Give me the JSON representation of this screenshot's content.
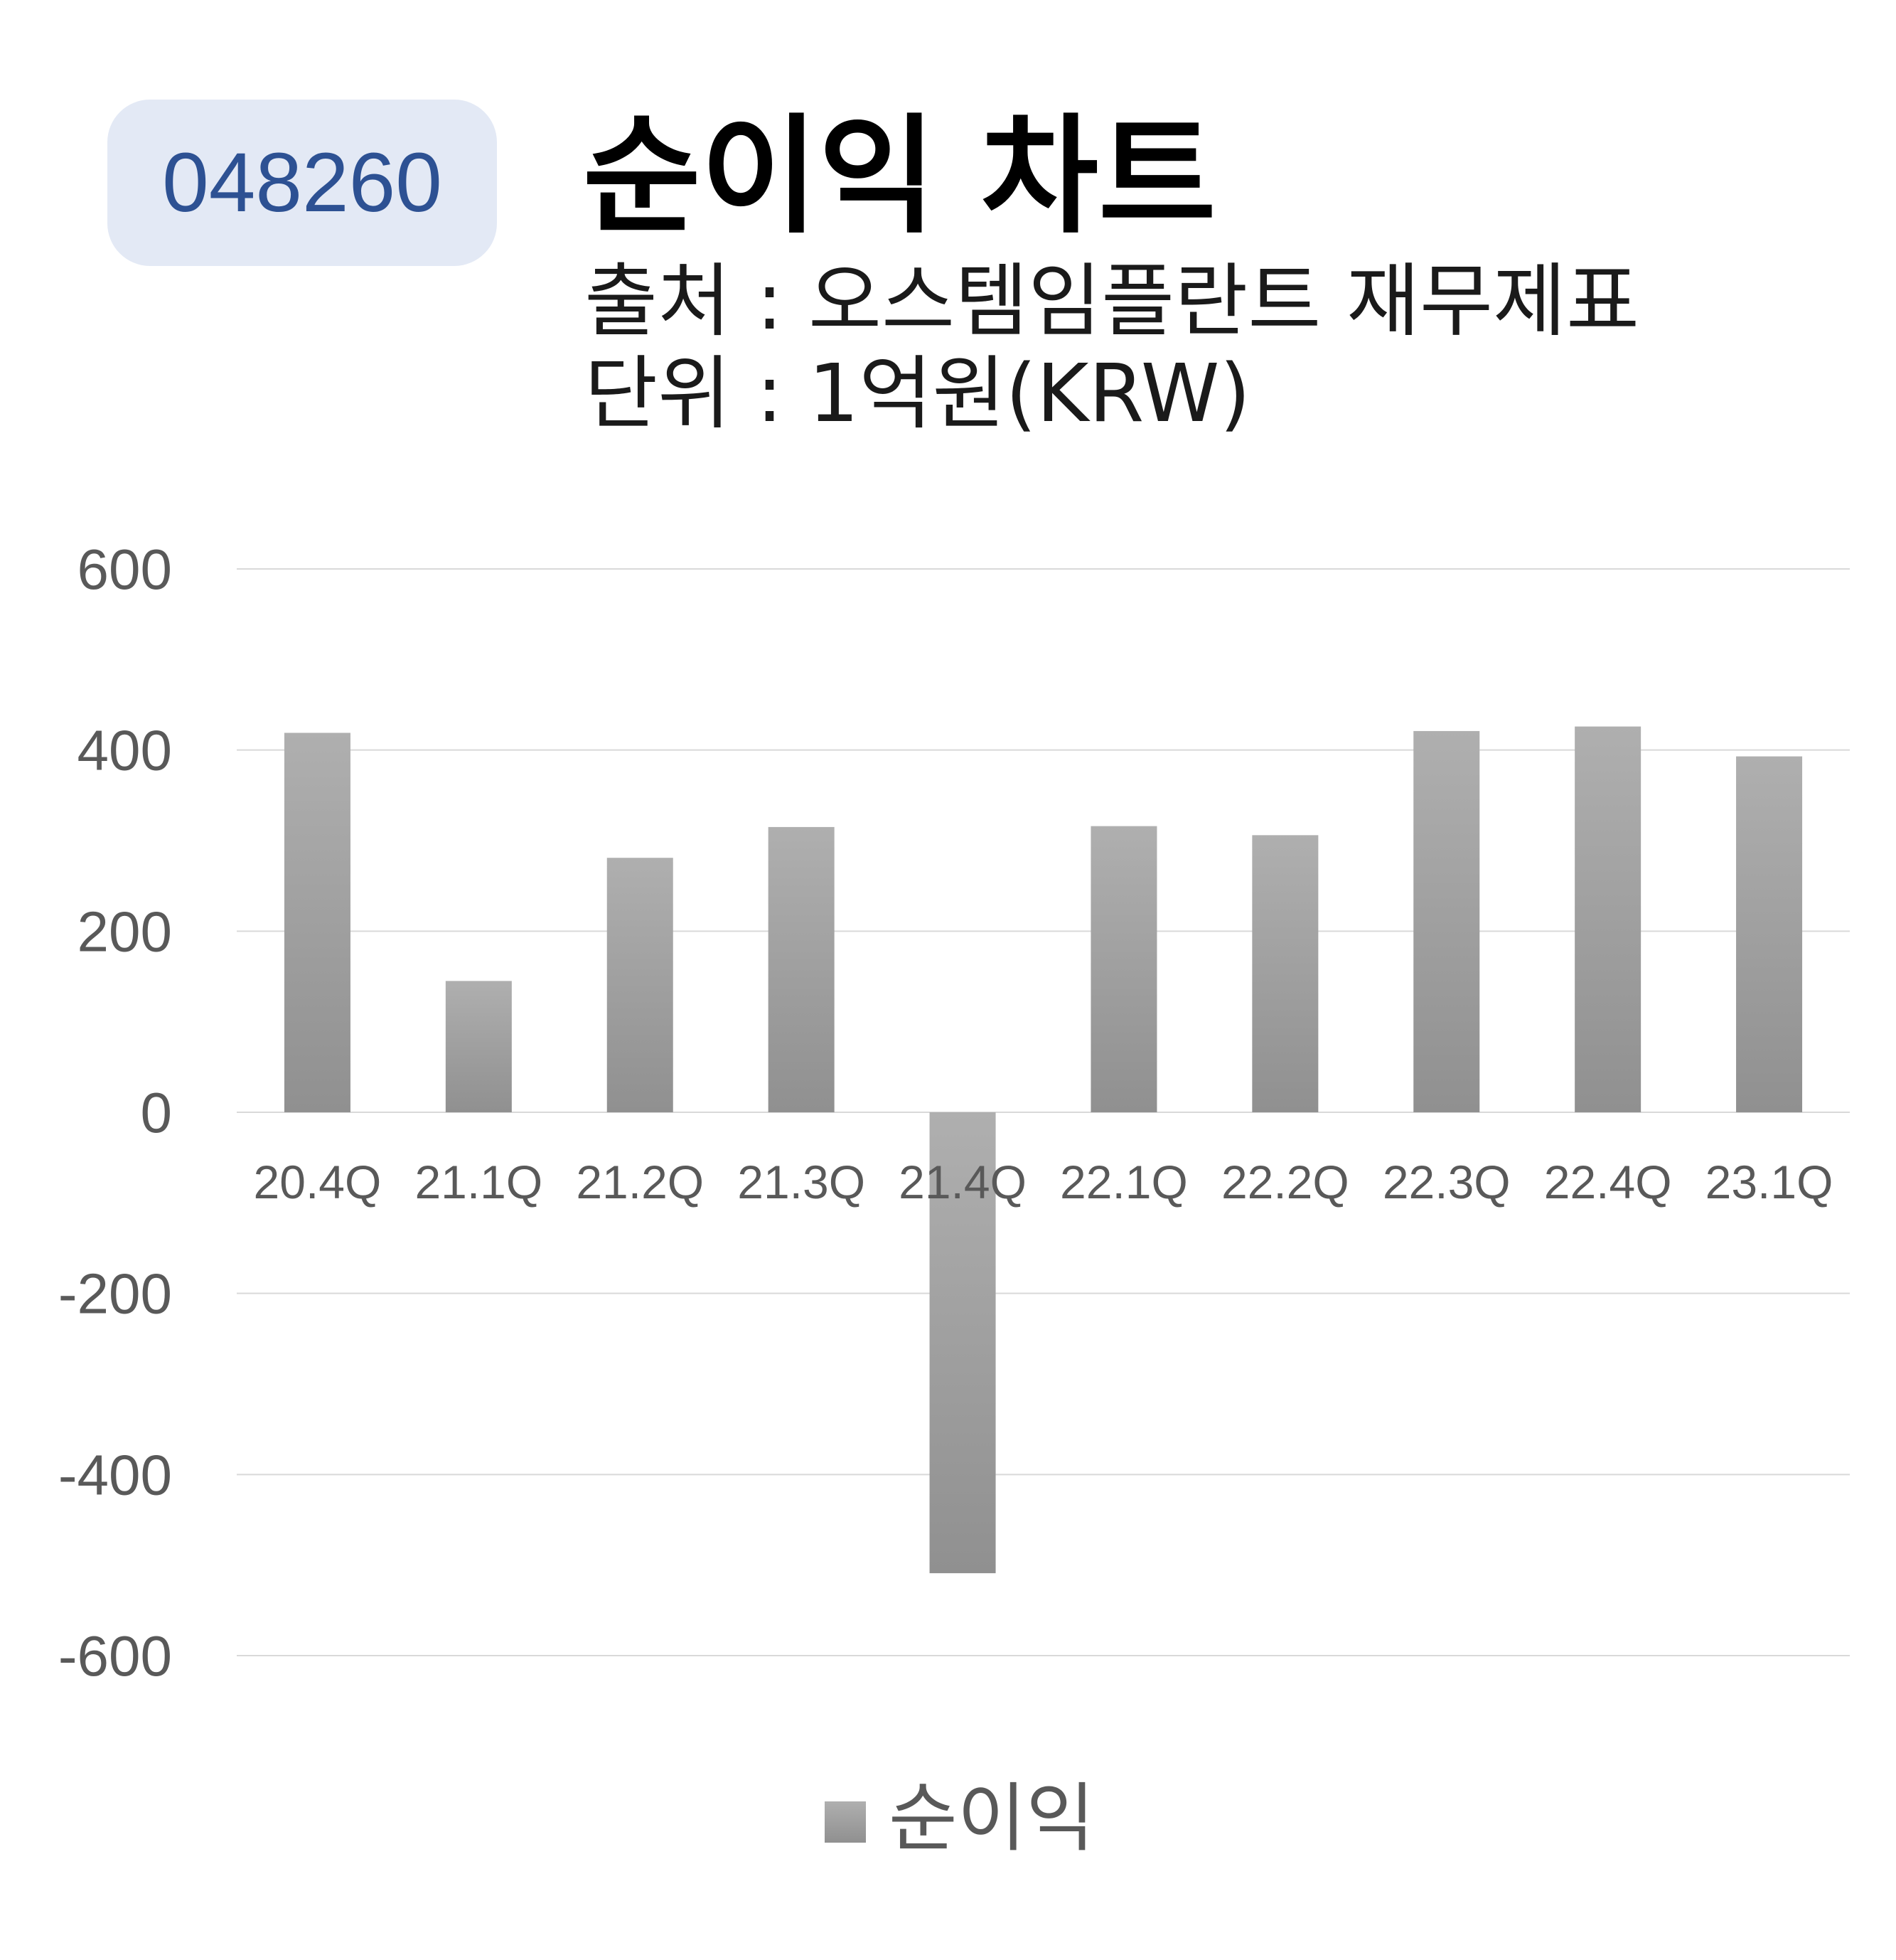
{
  "header": {
    "stock_code": "048260",
    "title": "순이익 차트",
    "source": "출처 : 오스템임플란트 재무제표",
    "unit": "단위 : 1억원(KRW)"
  },
  "colors": {
    "bar_top": "#afafaf",
    "bar_bottom": "#909090",
    "grid": "#d9d9d9",
    "tick_text": "#595959",
    "badge_bg": "#e3e9f5",
    "badge_text": "#2d5193"
  },
  "chart_data": {
    "type": "bar",
    "categories": [
      "20.4Q",
      "21.1Q",
      "21.2Q",
      "21.3Q",
      "21.4Q",
      "22.1Q",
      "22.2Q",
      "22.3Q",
      "22.4Q",
      "23.1Q"
    ],
    "series": [
      {
        "name": "순이익",
        "values": [
          419,
          145,
          281,
          315,
          -509,
          316,
          306,
          421,
          426,
          393
        ]
      }
    ],
    "ylim": [
      -600,
      600
    ],
    "yticks": [
      600,
      400,
      200,
      0,
      -200,
      -400,
      -600
    ],
    "grid": true,
    "legend": "bottom"
  }
}
